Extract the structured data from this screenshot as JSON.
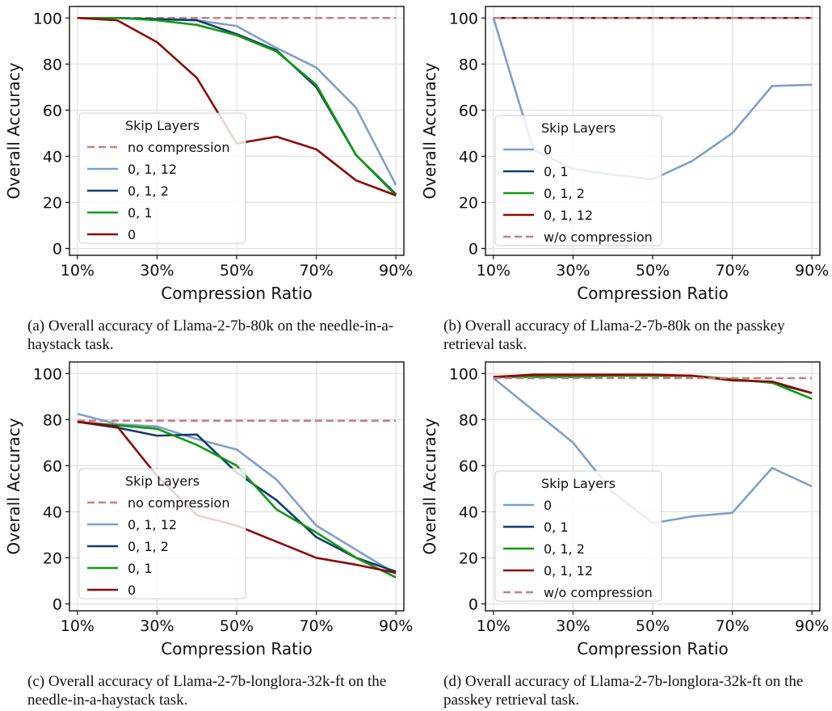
{
  "figure": {
    "captions": [
      "(a) Overall accuracy of Llama-2-7b-80k on the needle-in-a-haystack task.",
      "(b) Overall accuracy of Llama-2-7b-80k on the passkey retrieval task.",
      "(c) Overall accuracy of Llama-2-7b-longlora-32k-ft on the needle-in-a-haystack task.",
      "(d) Overall accuracy of Llama-2-7b-longlora-32k-ft on the passkey retrieval task."
    ]
  },
  "colors": {
    "light_blue": "#7f9fc8",
    "dark_blue": "#0e3c6e",
    "green": "#119911",
    "dark_red": "#8b0a0a",
    "baseline": "#c97c7c"
  },
  "chart_data": [
    {
      "type": "line",
      "xlabel": "Compression Ratio",
      "ylabel": "Overall Accuracy",
      "x": [
        10,
        20,
        30,
        40,
        50,
        60,
        70,
        80,
        90
      ],
      "x_ticks": [
        "10%",
        "30%",
        "50%",
        "70%",
        "90%"
      ],
      "y_ticks": [
        "0",
        "20",
        "40",
        "60",
        "80",
        "100"
      ],
      "ylim": [
        -3,
        105
      ],
      "grid": true,
      "legend_title": "Skip Layers",
      "legend_position": "center-left",
      "series": [
        {
          "name": "no compression",
          "values": [
            100,
            100,
            100,
            100,
            100,
            100,
            100,
            100,
            100
          ],
          "style": "dashed",
          "color_key": "baseline"
        },
        {
          "name": "0, 1, 12",
          "values": [
            100,
            100,
            99.5,
            99,
            96.5,
            87,
            78.5,
            61,
            27.5
          ],
          "color_key": "light_blue"
        },
        {
          "name": "0, 1, 2",
          "values": [
            100,
            100,
            99.5,
            99,
            93,
            86,
            70,
            40.5,
            23.5
          ],
          "color_key": "dark_blue"
        },
        {
          "name": "0, 1",
          "values": [
            100,
            100,
            99,
            97,
            92.5,
            85.5,
            71,
            40.5,
            23
          ],
          "color_key": "green"
        },
        {
          "name": "0",
          "values": [
            100,
            99,
            89.5,
            74,
            45.5,
            48.5,
            43,
            29.5,
            23
          ],
          "color_key": "dark_red"
        }
      ]
    },
    {
      "type": "line",
      "xlabel": "Compression Ratio",
      "ylabel": "Overall Accuracy",
      "x": [
        10,
        20,
        30,
        40,
        50,
        60,
        70,
        80,
        90
      ],
      "x_ticks": [
        "10%",
        "30%",
        "50%",
        "70%",
        "90%"
      ],
      "y_ticks": [
        "0",
        "20",
        "40",
        "60",
        "80",
        "100"
      ],
      "ylim": [
        -3,
        105
      ],
      "grid": true,
      "legend_title": "Skip Layers",
      "legend_position": "lower-left",
      "series": [
        {
          "name": "0",
          "values": [
            100,
            43,
            34.5,
            32,
            30,
            38,
            50,
            70.5,
            71
          ],
          "color_key": "light_blue"
        },
        {
          "name": "0, 1",
          "values": [
            100,
            100,
            100,
            100,
            100,
            100,
            100,
            100,
            100
          ],
          "color_key": "dark_blue"
        },
        {
          "name": "0, 1, 2",
          "values": [
            100,
            100,
            100,
            100,
            100,
            100,
            100,
            100,
            100
          ],
          "color_key": "green"
        },
        {
          "name": "0, 1, 12",
          "values": [
            100,
            100,
            100,
            100,
            100,
            100,
            100,
            100,
            100
          ],
          "color_key": "dark_red"
        },
        {
          "name": "w/o compression",
          "values": [
            100,
            100,
            100,
            100,
            100,
            100,
            100,
            100,
            100
          ],
          "style": "dashed",
          "color_key": "baseline"
        }
      ]
    },
    {
      "type": "line",
      "xlabel": "Compression Ratio",
      "ylabel": "Overall Accuracy",
      "x": [
        10,
        20,
        30,
        40,
        50,
        60,
        70,
        80,
        90
      ],
      "x_ticks": [
        "10%",
        "30%",
        "50%",
        "70%",
        "90%"
      ],
      "y_ticks": [
        "0",
        "20",
        "40",
        "60",
        "80",
        "100"
      ],
      "ylim": [
        -3,
        105
      ],
      "grid": true,
      "legend_title": "Skip Layers",
      "legend_position": "center-left",
      "series": [
        {
          "name": "no compression",
          "values": [
            79.5,
            79.5,
            79.5,
            79.5,
            79.5,
            79.5,
            79.5,
            79.5,
            79.5
          ],
          "style": "dashed",
          "color_key": "baseline"
        },
        {
          "name": "0, 1, 12",
          "values": [
            82.5,
            78,
            77,
            71.5,
            67,
            54,
            34,
            23.5,
            13
          ],
          "color_key": "light_blue"
        },
        {
          "name": "0, 1, 2",
          "values": [
            79,
            76.5,
            73,
            73.5,
            57,
            45,
            29,
            20,
            14
          ],
          "color_key": "dark_blue"
        },
        {
          "name": "0, 1",
          "values": [
            79,
            77.5,
            76,
            69,
            60,
            41,
            31,
            20,
            11.5
          ],
          "color_key": "green"
        },
        {
          "name": "0",
          "values": [
            79,
            77,
            55.5,
            38.5,
            34,
            27,
            20,
            17,
            13.5
          ],
          "color_key": "dark_red"
        }
      ]
    },
    {
      "type": "line",
      "xlabel": "Compression Ratio",
      "ylabel": "Overall Accuracy",
      "x": [
        10,
        20,
        30,
        40,
        50,
        60,
        70,
        80,
        90
      ],
      "x_ticks": [
        "10%",
        "30%",
        "50%",
        "70%",
        "90%"
      ],
      "y_ticks": [
        "0",
        "20",
        "40",
        "60",
        "80",
        "100"
      ],
      "ylim": [
        -3,
        105
      ],
      "grid": true,
      "legend_title": "Skip Layers",
      "legend_position": "lower-left",
      "series": [
        {
          "name": "0",
          "values": [
            98,
            84,
            70,
            48.5,
            35,
            38,
            39.5,
            59,
            51
          ],
          "color_key": "light_blue"
        },
        {
          "name": "0, 1",
          "values": [
            98.5,
            99,
            99,
            99,
            99,
            99,
            97.5,
            96,
            91.5
          ],
          "color_key": "dark_blue"
        },
        {
          "name": "0, 1, 2",
          "values": [
            98.5,
            98.5,
            98.5,
            99,
            99,
            99,
            97.5,
            96,
            89
          ],
          "color_key": "green"
        },
        {
          "name": "0, 1, 12",
          "values": [
            98.5,
            99.5,
            99.5,
            99.5,
            99.5,
            99,
            97,
            96.5,
            91.5
          ],
          "color_key": "dark_red"
        },
        {
          "name": "w/o compression",
          "values": [
            98,
            98,
            98,
            98,
            98,
            98,
            98,
            98,
            98
          ],
          "style": "dashed",
          "color_key": "baseline"
        }
      ]
    }
  ]
}
